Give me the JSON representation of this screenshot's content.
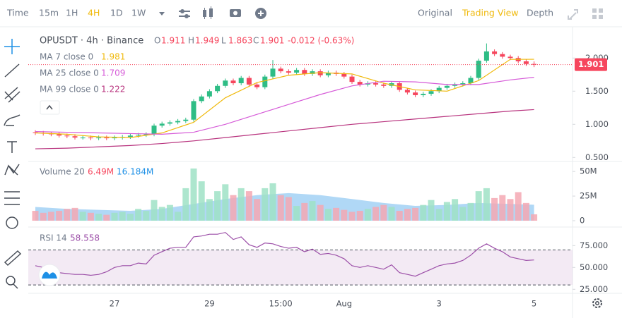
{
  "toolbar": {
    "intervals": [
      "Time",
      "15m",
      "1H",
      "4H",
      "1D",
      "1W"
    ],
    "active": "4H",
    "views": [
      "Original",
      "Trading View",
      "Depth"
    ],
    "active_view": "Trading View"
  },
  "chart_data": [
    {
      "type": "candlestick",
      "title": "OPUSDT · 4h · Binance",
      "ohlc_labels": [
        "O",
        "H",
        "L",
        "C"
      ],
      "change": "-0.012 (-0.63%)",
      "up_color": "#2ebd85",
      "down_color": "#f6465d",
      "categories": [
        null,
        null,
        null,
        null,
        null,
        null,
        null,
        null,
        null,
        null,
        "27",
        null,
        null,
        null,
        null,
        null,
        null,
        null,
        null,
        null,
        null,
        null,
        "29",
        null,
        null,
        null,
        null,
        null,
        null,
        null,
        null,
        "15:00",
        null,
        null,
        null,
        null,
        null,
        null,
        null,
        "Aug",
        null,
        null,
        null,
        null,
        null,
        null,
        null,
        null,
        null,
        null,
        null,
        "3",
        null,
        null,
        null,
        null,
        null,
        null,
        null,
        null,
        null,
        null,
        null,
        "5"
      ],
      "open": [
        0.88,
        0.87,
        0.86,
        0.85,
        0.83,
        0.82,
        0.8,
        0.8,
        0.79,
        0.8,
        0.79,
        0.8,
        0.81,
        0.83,
        0.84,
        0.85,
        0.98,
        1.01,
        1.03,
        1.05,
        1.07,
        1.35,
        1.42,
        1.5,
        1.58,
        1.66,
        1.62,
        1.7,
        1.6,
        1.56,
        1.72,
        1.84,
        1.8,
        1.78,
        1.82,
        1.76,
        1.8,
        1.74,
        1.78,
        1.76,
        1.72,
        1.64,
        1.6,
        1.62,
        1.6,
        1.58,
        1.62,
        1.52,
        1.48,
        1.44,
        1.46,
        1.5,
        1.55,
        1.58,
        1.6,
        1.62,
        1.7,
        1.96,
        2.1,
        2.06,
        2.02,
        2.0,
        1.95,
        1.911
      ],
      "high": [
        0.91,
        0.9,
        0.89,
        0.88,
        0.86,
        0.85,
        0.83,
        0.83,
        0.83,
        0.83,
        0.83,
        0.84,
        0.86,
        0.87,
        0.88,
        1.01,
        1.04,
        1.06,
        1.08,
        1.1,
        1.38,
        1.45,
        1.53,
        1.61,
        1.69,
        1.69,
        1.73,
        1.73,
        1.63,
        1.75,
        1.97,
        1.87,
        1.83,
        1.85,
        1.85,
        1.83,
        1.83,
        1.81,
        1.81,
        1.79,
        1.75,
        1.67,
        1.65,
        1.65,
        1.63,
        1.65,
        1.65,
        1.55,
        1.51,
        1.49,
        1.53,
        1.58,
        1.61,
        1.63,
        1.65,
        1.73,
        1.99,
        2.22,
        2.13,
        2.09,
        2.05,
        2.03,
        1.98,
        1.949
      ],
      "low": [
        0.84,
        0.83,
        0.82,
        0.8,
        0.79,
        0.77,
        0.77,
        0.76,
        0.76,
        0.76,
        0.76,
        0.77,
        0.78,
        0.8,
        0.81,
        0.82,
        0.95,
        0.98,
        1.0,
        1.02,
        1.04,
        1.32,
        1.39,
        1.47,
        1.55,
        1.59,
        1.59,
        1.57,
        1.53,
        1.53,
        1.69,
        1.77,
        1.75,
        1.75,
        1.73,
        1.73,
        1.71,
        1.71,
        1.73,
        1.69,
        1.61,
        1.57,
        1.57,
        1.57,
        1.55,
        1.55,
        1.49,
        1.45,
        1.41,
        1.41,
        1.43,
        1.47,
        1.52,
        1.55,
        1.57,
        1.59,
        1.67,
        1.93,
        2.03,
        1.99,
        1.97,
        1.92,
        1.88,
        1.863
      ],
      "close": [
        0.87,
        0.86,
        0.85,
        0.83,
        0.82,
        0.8,
        0.8,
        0.79,
        0.8,
        0.79,
        0.8,
        0.81,
        0.83,
        0.84,
        0.85,
        0.98,
        1.01,
        1.03,
        1.05,
        1.07,
        1.35,
        1.42,
        1.5,
        1.58,
        1.66,
        1.62,
        1.7,
        1.6,
        1.56,
        1.72,
        1.84,
        1.8,
        1.78,
        1.82,
        1.76,
        1.8,
        1.74,
        1.78,
        1.76,
        1.72,
        1.64,
        1.6,
        1.62,
        1.6,
        1.58,
        1.62,
        1.52,
        1.48,
        1.44,
        1.46,
        1.5,
        1.55,
        1.58,
        1.6,
        1.62,
        1.7,
        1.96,
        2.1,
        2.06,
        2.02,
        2.0,
        1.95,
        1.91,
        1.901
      ],
      "series": [
        {
          "name": "MA 7 close 0",
          "color": "#f0b90b",
          "x": [
            0,
            4,
            8,
            12,
            16,
            20,
            24,
            28,
            32,
            36,
            40,
            44,
            48,
            52,
            56,
            60,
            63
          ],
          "values": [
            0.87,
            0.85,
            0.81,
            0.8,
            0.87,
            1.03,
            1.4,
            1.63,
            1.74,
            1.78,
            1.76,
            1.62,
            1.52,
            1.5,
            1.66,
            1.98,
            1.981
          ]
        },
        {
          "name": "MA 25 close 0",
          "color": "#d65bd8",
          "x": [
            0,
            4,
            8,
            12,
            16,
            20,
            24,
            28,
            32,
            36,
            40,
            44,
            48,
            52,
            56,
            60,
            63
          ],
          "values": [
            0.89,
            0.88,
            0.87,
            0.86,
            0.85,
            0.88,
            1.0,
            1.15,
            1.3,
            1.45,
            1.58,
            1.65,
            1.64,
            1.6,
            1.6,
            1.67,
            1.709
          ]
        },
        {
          "name": "MA 99 close 0",
          "color": "#b8337e",
          "x": [
            0,
            4,
            8,
            12,
            16,
            20,
            24,
            28,
            32,
            36,
            40,
            44,
            48,
            52,
            56,
            60,
            63
          ],
          "values": [
            0.63,
            0.64,
            0.66,
            0.68,
            0.71,
            0.75,
            0.8,
            0.85,
            0.9,
            0.95,
            1.0,
            1.04,
            1.08,
            1.12,
            1.16,
            1.2,
            1.222
          ]
        }
      ],
      "ylim": [
        0.45,
        2.45
      ],
      "yticks": [
        {
          "value": 0.5,
          "label": "0.500"
        },
        {
          "value": 1,
          "label": "1.000"
        },
        {
          "value": 1.5,
          "label": "1.500"
        },
        {
          "value": 2,
          "label": "2.000"
        }
      ]
    },
    {
      "type": "bar",
      "title": "Volume 20",
      "last_label": "6.49M",
      "ma_label": "16.184M",
      "values": [
        10,
        8,
        9,
        10,
        12,
        13,
        9,
        8,
        7,
        6,
        8,
        9,
        7,
        12,
        10,
        21,
        14,
        16,
        9,
        33,
        53,
        40,
        22,
        30,
        37,
        26,
        33,
        30,
        22,
        33,
        38,
        26,
        24,
        15,
        18,
        20,
        16,
        12,
        13,
        11,
        9,
        10,
        12,
        14,
        16,
        14,
        10,
        12,
        13,
        16,
        21,
        12,
        19,
        22,
        14,
        18,
        30,
        33,
        23,
        26,
        22,
        29,
        18,
        6.49
      ],
      "up_color": "#9fe2c6",
      "down_color": "#f4a8b3",
      "series": [
        {
          "name": "MA 20",
          "color": "#1e90e6",
          "x": [
            0,
            4,
            8,
            12,
            16,
            20,
            24,
            28,
            32,
            36,
            40,
            44,
            48,
            52,
            56,
            60,
            63
          ],
          "values": [
            14,
            12,
            11,
            10,
            12,
            17,
            22,
            26,
            28,
            26,
            22,
            18,
            15,
            16,
            18,
            17,
            16.184
          ]
        }
      ],
      "ylim": [
        0,
        58
      ],
      "yticks": [
        {
          "value": 0,
          "label": "0"
        },
        {
          "value": 25,
          "label": "25M"
        },
        {
          "value": 50,
          "label": "50M"
        }
      ]
    },
    {
      "type": "line",
      "title": "RSI 14",
      "color": "#9c4fa8",
      "values": [
        52,
        50,
        46,
        44,
        43,
        42,
        42,
        41,
        42,
        45,
        50,
        52,
        52,
        55,
        54,
        64,
        68,
        72,
        73,
        73,
        85,
        86,
        88,
        88,
        90,
        82,
        85,
        76,
        73,
        78,
        77,
        74,
        72,
        73,
        68,
        71,
        65,
        66,
        64,
        60,
        52,
        50,
        52,
        50,
        48,
        53,
        44,
        42,
        40,
        44,
        48,
        52,
        54,
        55,
        58,
        64,
        72,
        77,
        72,
        68,
        62,
        60,
        58,
        58.558
      ],
      "bands": [
        30,
        70
      ],
      "ylim": [
        22,
        93
      ],
      "yticks": [
        {
          "value": 25,
          "label": "25.000"
        },
        {
          "value": 50,
          "label": "50.000"
        },
        {
          "value": 75,
          "label": "75.000"
        }
      ]
    }
  ]
}
